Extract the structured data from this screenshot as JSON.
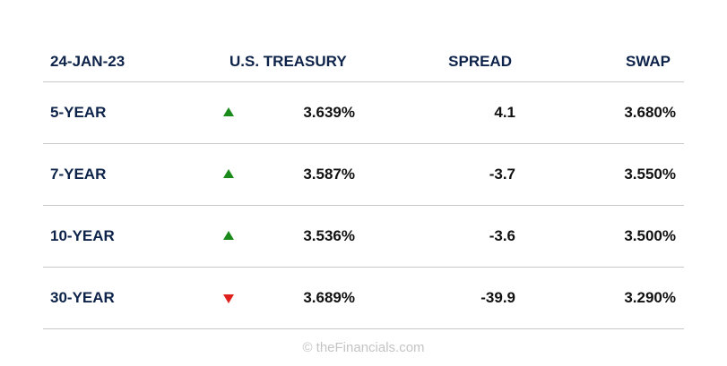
{
  "header": {
    "date": "24-JAN-23",
    "treasury": "U.S. TREASURY",
    "spread": "SPREAD",
    "swap": "SWAP"
  },
  "rows": [
    {
      "term": "5-YEAR",
      "direction": "up",
      "direction_icon": "triangle-up-icon",
      "treasury": "3.639%",
      "spread": "4.1",
      "swap": "3.680%"
    },
    {
      "term": "7-YEAR",
      "direction": "up",
      "direction_icon": "triangle-up-icon",
      "treasury": "3.587%",
      "spread": "-3.7",
      "swap": "3.550%"
    },
    {
      "term": "10-YEAR",
      "direction": "up",
      "direction_icon": "triangle-up-icon",
      "treasury": "3.536%",
      "spread": "-3.6",
      "swap": "3.500%"
    },
    {
      "term": "30-YEAR",
      "direction": "down",
      "direction_icon": "triangle-down-icon",
      "treasury": "3.689%",
      "spread": "-39.9",
      "swap": "3.290%"
    }
  ],
  "footer": {
    "copyright": "© theFinancials.com"
  },
  "colors": {
    "heading": "#0d2349",
    "up": "#1a8a1a",
    "down": "#e0201c",
    "divider": "#c8c8c8",
    "footer": "#c4c4c4"
  }
}
